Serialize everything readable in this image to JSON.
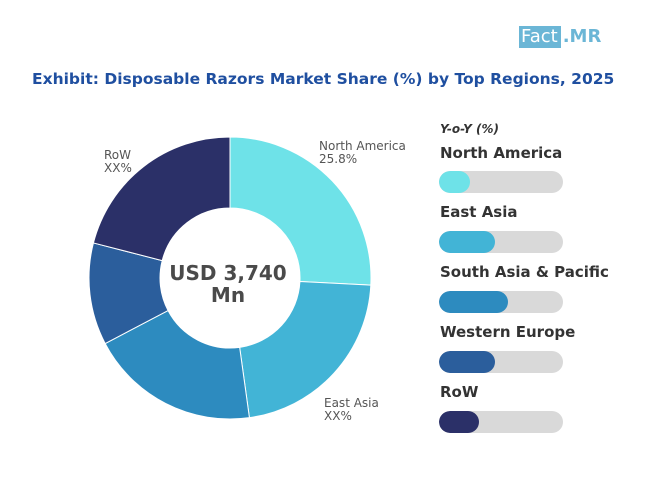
{
  "brand": {
    "part1": "Fact",
    "part2": ".MR"
  },
  "chart_data": {
    "type": "pie",
    "title": "Exhibit: Disposable Razors Market Share (%) by Top Regions, 2025",
    "center_label_line1": "USD 3,740",
    "center_label_line2": "Mn",
    "slice_labels": [
      {
        "name": "North America",
        "value": "25.8%"
      },
      {
        "name": "East Asia",
        "value": "XX%"
      },
      {
        "name": "RoW",
        "value": "XX%"
      }
    ],
    "series": [
      {
        "name": "North America",
        "value": 25.8,
        "color": "#6ee2e8"
      },
      {
        "name": "East Asia",
        "value": 22.0,
        "color": "#42b4d6"
      },
      {
        "name": "South Asia & Pacific",
        "value": 19.5,
        "color": "#2d8bbf"
      },
      {
        "name": "Western Europe",
        "value": 11.7,
        "color": "#2b5e9c"
      },
      {
        "name": "RoW",
        "value": 21.0,
        "color": "#2b3068"
      }
    ]
  },
  "legend": {
    "heading": "Y-o-Y (%)",
    "items": [
      {
        "name": "North America",
        "level": 0.25,
        "color": "#6ee2e8"
      },
      {
        "name": "East Asia",
        "level": 0.45,
        "color": "#42b4d6"
      },
      {
        "name": "South Asia & Pacific",
        "level": 0.56,
        "color": "#2d8bbf"
      },
      {
        "name": "Western Europe",
        "level": 0.45,
        "color": "#2b5e9c"
      },
      {
        "name": "RoW",
        "level": 0.32,
        "color": "#2b3068"
      }
    ]
  }
}
